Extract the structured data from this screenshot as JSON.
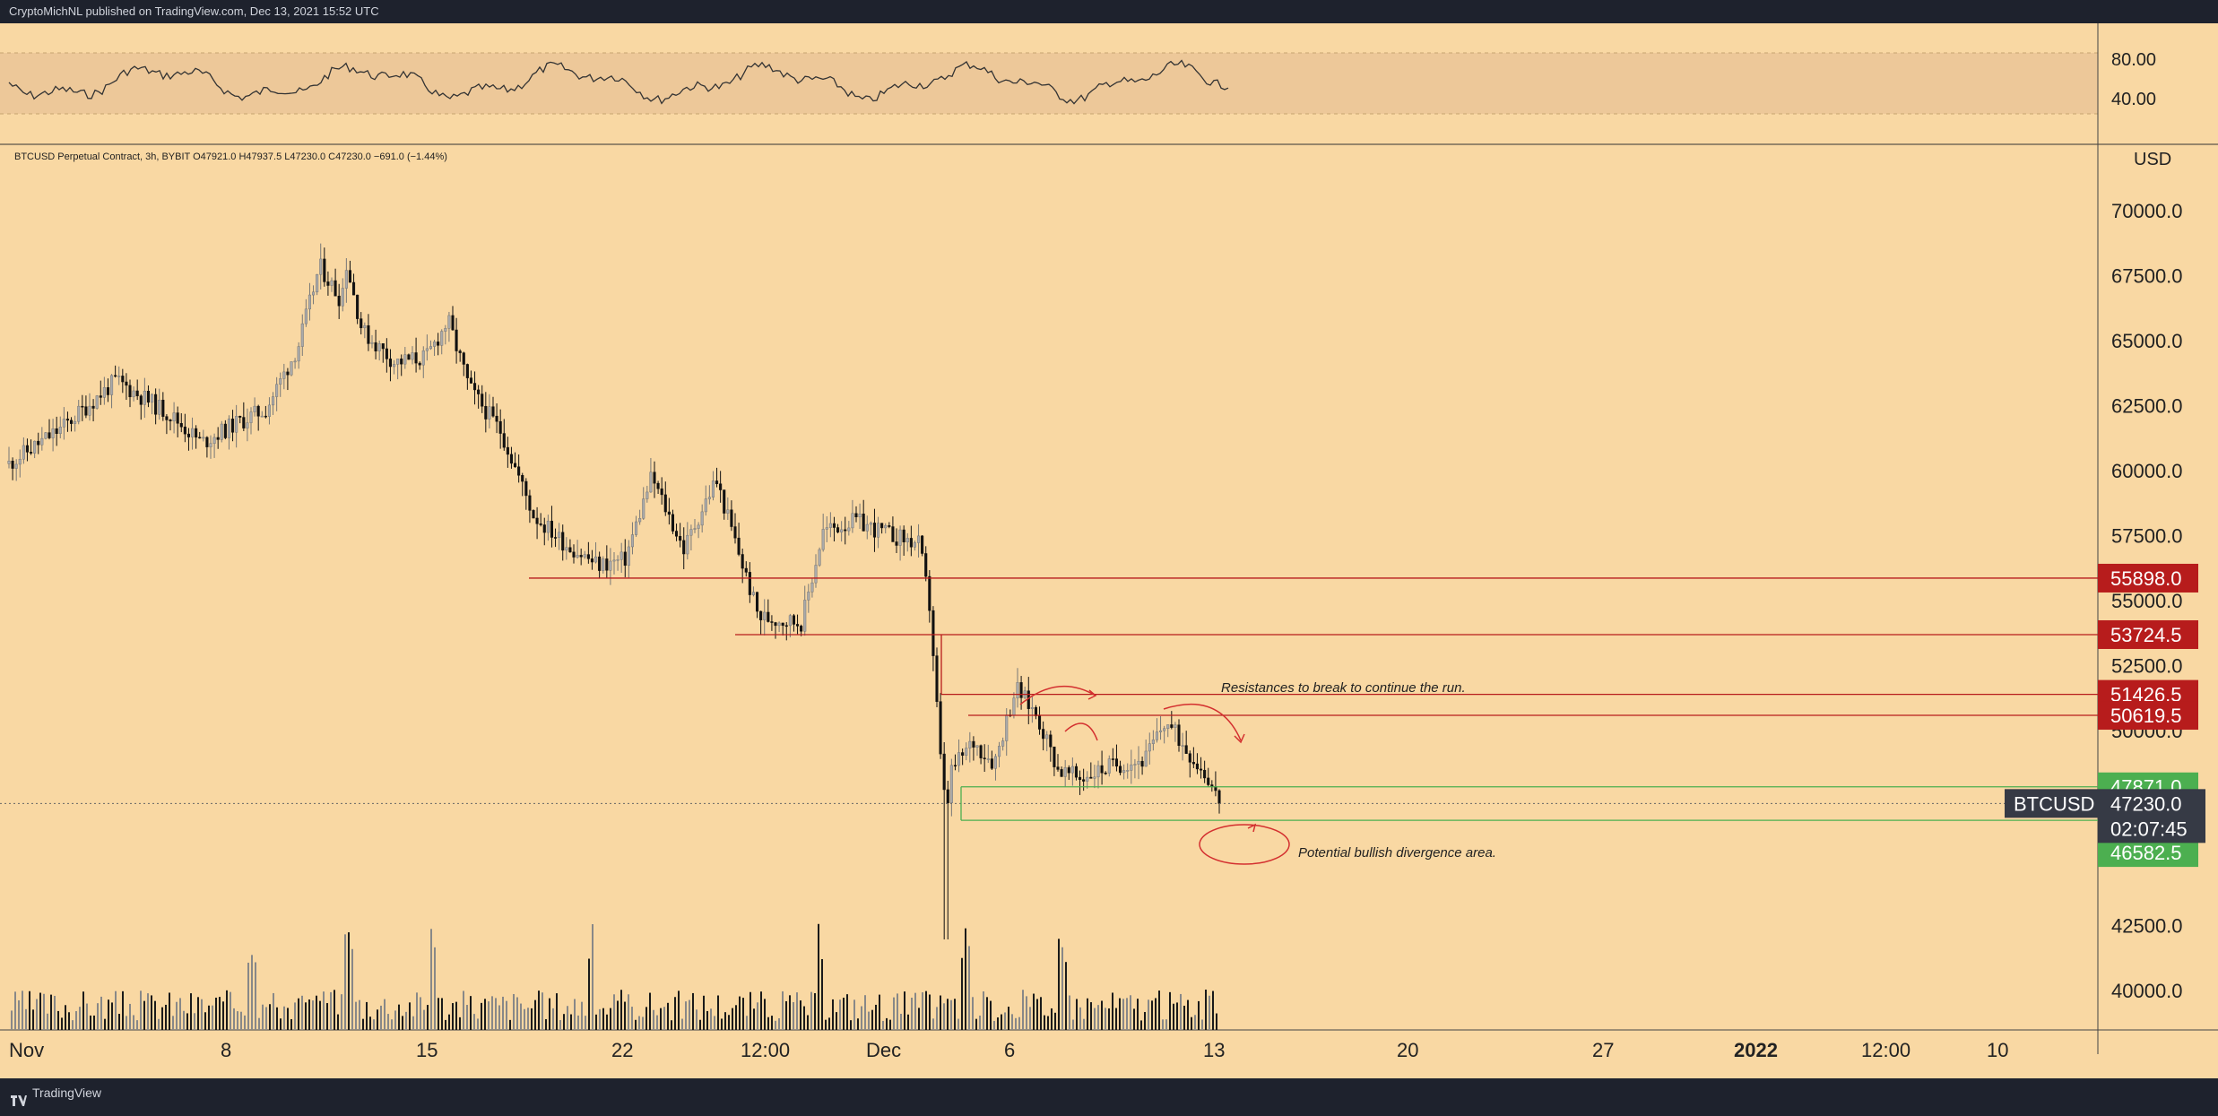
{
  "header": {
    "text": "CryptoMichNL published on TradingView.com, Dec 13, 2021 15:52 UTC"
  },
  "footer": {
    "brand": "TradingView"
  },
  "chart_data": {
    "type": "candlestick",
    "title": "",
    "info_line": "BTCUSD Perpetual Contract, 3h, BYBIT  O47921.0  H47937.5  L47230.0  C47230.0  −691.0 (−1.44%)",
    "currency_label": "USD",
    "price_axis": {
      "ticks": [
        "70000.0",
        "67500.0",
        "65000.0",
        "62500.0",
        "60000.0",
        "57500.0",
        "55000.0",
        "52500.0",
        "50000.0",
        "42500.0",
        "40000.0"
      ],
      "ylim": [
        39000,
        72500
      ]
    },
    "time_axis": {
      "labels": [
        "Nov",
        "8",
        "15",
        "22",
        "12:00",
        "Dec",
        "6",
        "13",
        "20",
        "27",
        "2022",
        "12:00",
        "10"
      ]
    },
    "rsi": {
      "ticks": [
        "80.00",
        "40.00"
      ],
      "band": [
        30,
        70
      ]
    },
    "levels": [
      {
        "value": 55898.0,
        "label": "55898.0",
        "color": "#b71c1c"
      },
      {
        "value": 53724.5,
        "label": "53724.5",
        "color": "#b71c1c"
      },
      {
        "value": 51426.5,
        "label": "51426.5",
        "color": "#b71c1c"
      },
      {
        "value": 50619.5,
        "label": "50619.5",
        "color": "#b71c1c"
      },
      {
        "value": 47871.0,
        "label": "47871.0",
        "color": "#4caf50"
      },
      {
        "value": 46582.5,
        "label": "46582.5",
        "color": "#4caf50"
      }
    ],
    "last_price": {
      "symbol": "BTCUSD",
      "value": "47230.0",
      "countdown": "02:07:45",
      "color": "#363a45"
    },
    "annotations": [
      {
        "text": "Resistances to break to continue the run."
      },
      {
        "text": "Potential bullish divergence area."
      }
    ],
    "close_path": [
      [
        0,
        60300
      ],
      [
        0.05,
        61700
      ],
      [
        0.1,
        63500
      ],
      [
        0.15,
        62200
      ],
      [
        0.18,
        61100
      ],
      [
        0.21,
        61800
      ],
      [
        0.24,
        62400
      ],
      [
        0.27,
        64800
      ],
      [
        0.29,
        67900
      ],
      [
        0.31,
        66600
      ],
      [
        0.315,
        68000
      ],
      [
        0.33,
        65400
      ],
      [
        0.36,
        64200
      ],
      [
        0.39,
        64400
      ],
      [
        0.41,
        65800
      ],
      [
        0.43,
        63200
      ],
      [
        0.46,
        61500
      ],
      [
        0.49,
        58300
      ],
      [
        0.52,
        57200
      ],
      [
        0.55,
        56400
      ],
      [
        0.575,
        56600
      ],
      [
        0.6,
        59800
      ],
      [
        0.63,
        57000
      ],
      [
        0.66,
        59700
      ],
      [
        0.7,
        54400
      ],
      [
        0.74,
        54200
      ],
      [
        0.76,
        57700
      ],
      [
        0.79,
        58100
      ],
      [
        0.82,
        57600
      ],
      [
        0.85,
        57200
      ],
      [
        0.86,
        54700
      ],
      [
        0.87,
        48800
      ],
      [
        0.875,
        46800
      ],
      [
        0.88,
        48500
      ],
      [
        0.9,
        49600
      ],
      [
        0.92,
        48800
      ],
      [
        0.94,
        51700
      ],
      [
        0.96,
        50600
      ],
      [
        0.98,
        48500
      ],
      [
        1.0,
        48200
      ],
      [
        1.03,
        48700
      ],
      [
        1.06,
        48900
      ],
      [
        1.08,
        50400
      ],
      [
        1.1,
        49300
      ],
      [
        1.12,
        48200
      ],
      [
        1.13,
        47230
      ]
    ],
    "volume_spikes": [
      0.2,
      0.28,
      0.35,
      0.48,
      0.67,
      0.79,
      0.87
    ]
  }
}
